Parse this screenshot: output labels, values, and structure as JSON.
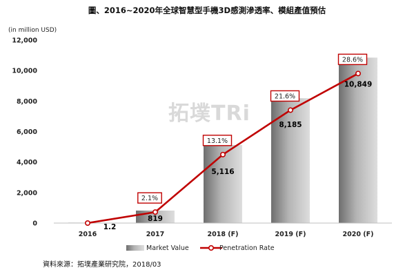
{
  "chart_data": {
    "type": "bar",
    "title": "圖、2016~2020年全球智慧型手機3D感測滲透率、模組產值預估",
    "unit_label": "(in million USD)",
    "categories": [
      "2016",
      "2017",
      "2018 (F)",
      "2019 (F)",
      "2020 (F)"
    ],
    "ylim": [
      0,
      12000
    ],
    "yticks": [
      "0",
      "2,000",
      "4,000",
      "6,000",
      "8,000",
      "10,000",
      "12,000"
    ],
    "ytick_values": [
      0,
      2000,
      4000,
      6000,
      8000,
      10000,
      12000
    ],
    "grid": false,
    "legend_position": "bottom",
    "series": [
      {
        "name": "Market Value",
        "type": "bar",
        "values": [
          1.2,
          819,
          5116,
          8185,
          10849
        ],
        "labels": [
          "1.2",
          "819",
          "5,116",
          "8,185",
          "10,849"
        ],
        "color": "#9a9a9a"
      },
      {
        "name": "Penetration Rate",
        "type": "line",
        "values": [
          0.0,
          2.1,
          13.1,
          21.6,
          28.6
        ],
        "labels": [
          "",
          "2.1%",
          "13.1%",
          "21.6%",
          "28.6%"
        ],
        "axis_range": [
          0,
          35
        ],
        "color": "#c00000"
      }
    ]
  },
  "watermark_text": "拓墣TRi",
  "source_text": "資料來源：拓墣產業研究院，2018/03"
}
